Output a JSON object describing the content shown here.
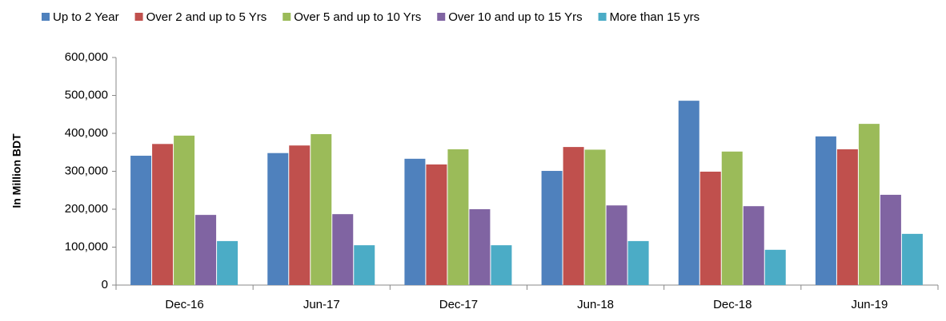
{
  "chart_data": {
    "type": "bar",
    "y_label": "In Million BDT",
    "categories": [
      "Dec-16",
      "Jun-17",
      "Dec-17",
      "Jun-18",
      "Dec-18",
      "Jun-19"
    ],
    "series": [
      {
        "name": "Up to 2 Year",
        "color": "#4f81bd",
        "values": [
          341000,
          348000,
          333000,
          301000,
          486000,
          392000
        ]
      },
      {
        "name": "Over 2 and up to 5 Yrs",
        "color": "#c0504d",
        "values": [
          372000,
          368000,
          318000,
          364000,
          299000,
          358000
        ]
      },
      {
        "name": "Over 5 and up to 10 Yrs",
        "color": "#9bbb59",
        "values": [
          394000,
          398000,
          358000,
          357000,
          352000,
          425000
        ]
      },
      {
        "name": "Over 10 and up to 15 Yrs",
        "color": "#8064a2",
        "values": [
          185000,
          187000,
          200000,
          210000,
          208000,
          238000
        ]
      },
      {
        "name": "More than 15 yrs",
        "color": "#4bacc6",
        "values": [
          116000,
          105000,
          105000,
          116000,
          93000,
          135000
        ]
      }
    ],
    "ylim": [
      0,
      600000
    ],
    "yticks": [
      0,
      {
        "value": 100000,
        "label": "100,000"
      },
      {
        "value": 200000,
        "label": "200,000"
      },
      {
        "value": 300000,
        "label": "300,000"
      },
      {
        "value": 400000,
        "label": "400,000"
      },
      {
        "value": 500000,
        "label": "500,000"
      },
      {
        "value": 600000,
        "label": "600,000"
      }
    ],
    "grid": false
  }
}
